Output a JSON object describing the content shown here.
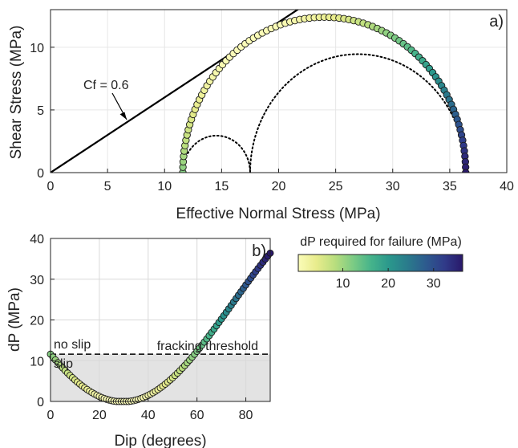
{
  "chart_data": [
    {
      "id": "a",
      "type": "scatter",
      "panel_label": "a)",
      "xlabel": "Effective Normal Stress (MPa)",
      "ylabel": "Shear Stress (MPa)",
      "xlim": [
        0,
        40
      ],
      "ylim": [
        0,
        13
      ],
      "xticks": [
        0,
        5,
        10,
        15,
        20,
        25,
        30,
        35,
        40
      ],
      "yticks": [
        0,
        5,
        10
      ],
      "grid": true,
      "annotation": "Cf = 0.6",
      "friction_coefficient": 0.6,
      "mohr_circles": [
        {
          "center": 24,
          "radius": 12.4,
          "style": "markers",
          "sigma3": 11.6,
          "sigma1": 36.4
        },
        {
          "center": 14.55,
          "radius": 2.95,
          "style": "dotted"
        },
        {
          "center": 26.95,
          "radius": 9.45,
          "style": "dotted"
        }
      ]
    },
    {
      "id": "b",
      "type": "scatter",
      "panel_label": "b)",
      "xlabel": "Dip (degrees)",
      "ylabel": "dP (MPa)",
      "xlim": [
        0,
        90
      ],
      "ylim": [
        0,
        40
      ],
      "xticks": [
        0,
        20,
        40,
        60,
        80
      ],
      "yticks": [
        0,
        10,
        20,
        30,
        40
      ],
      "grid": true,
      "threshold": 11.6,
      "threshold_label": "fracking threshold",
      "above_label": "no slip",
      "below_label": "slip",
      "curve": {
        "sigma1": 36.4,
        "sigma3": 11.6,
        "mu": 0.6,
        "dip_step": 1
      },
      "colorbar": {
        "title": "dP required for failure (MPa)",
        "range": [
          0.2,
          36.4
        ],
        "ticks": [
          10,
          20,
          30
        ],
        "colormap": [
          "#fbfcb8",
          "#e8ec8c",
          "#b9de7e",
          "#7ccb84",
          "#45b38b",
          "#2a978c",
          "#2a7a8c",
          "#2d5a8e",
          "#303b89",
          "#29186a"
        ]
      }
    }
  ]
}
